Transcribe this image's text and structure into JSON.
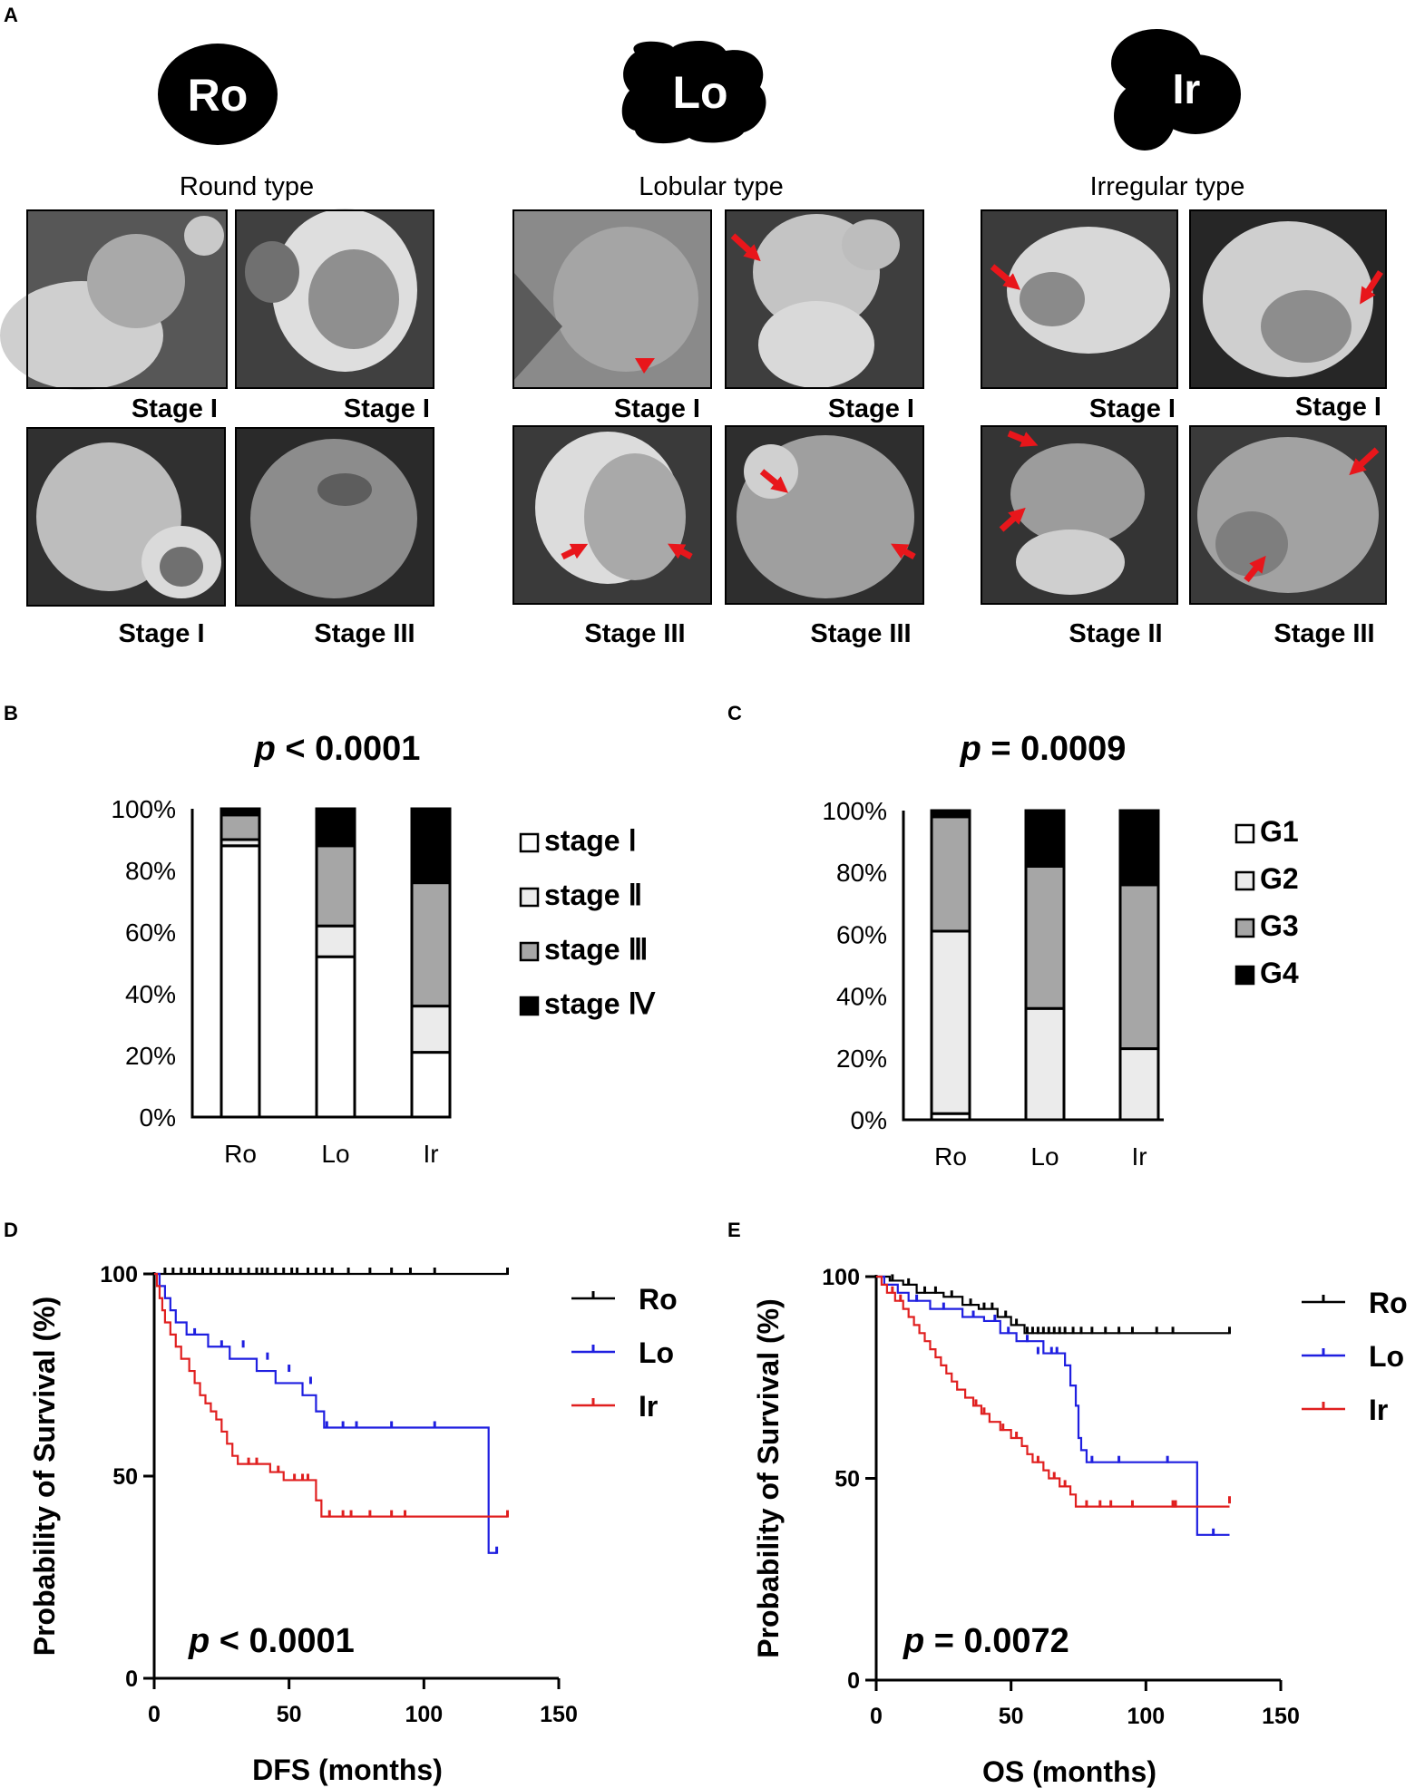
{
  "panel_labels": [
    "A",
    "B",
    "C",
    "D",
    "E"
  ],
  "panel_a": {
    "shapes": [
      {
        "abbr": "Ro",
        "caption": "Round type",
        "image_labels": [
          "Stage I",
          "Stage I",
          "Stage I",
          "Stage III"
        ]
      },
      {
        "abbr": "Lo",
        "caption": "Lobular type",
        "image_labels": [
          "Stage I",
          "Stage I",
          "Stage III",
          "Stage III"
        ]
      },
      {
        "abbr": "Ir",
        "caption": "Irregular type",
        "image_labels": [
          "Stage I",
          "Stage I",
          "Stage II",
          "Stage III"
        ]
      }
    ]
  },
  "colors": {
    "ro": "#000000",
    "lo": "#1f1fe0",
    "ir": "#e01f1f",
    "arrow": "#e8161b"
  },
  "chart_data": [
    {
      "panel": "B",
      "type": "bar",
      "stacked": true,
      "title": "p < 0.0001",
      "title_italic": "p",
      "title_rest": " < 0.0001",
      "categories": [
        "Ro",
        "Lo",
        "Ir"
      ],
      "yticks": [
        "0%",
        "20%",
        "40%",
        "60%",
        "80%",
        "100%"
      ],
      "ylim": [
        0,
        100
      ],
      "series": [
        {
          "name": "stage Ⅰ",
          "color": "#ffffff",
          "values": [
            88,
            52,
            21
          ]
        },
        {
          "name": "stage Ⅱ",
          "color": "#ebebeb",
          "values": [
            2,
            10,
            15
          ]
        },
        {
          "name": "stage Ⅲ",
          "color": "#a6a6a6",
          "values": [
            8,
            26,
            40
          ]
        },
        {
          "name": "stage Ⅳ",
          "color": "#000000",
          "values": [
            2,
            12,
            24
          ]
        }
      ],
      "legend": [
        "stage Ⅰ",
        "stage Ⅱ",
        "stage Ⅲ",
        "stage Ⅳ"
      ]
    },
    {
      "panel": "C",
      "type": "bar",
      "stacked": true,
      "title": "p = 0.0009",
      "title_italic": "p",
      "title_rest": " = 0.0009",
      "categories": [
        "Ro",
        "Lo",
        "Ir"
      ],
      "yticks": [
        "0%",
        "20%",
        "40%",
        "60%",
        "80%",
        "100%"
      ],
      "ylim": [
        0,
        100
      ],
      "series": [
        {
          "name": "G1",
          "color": "#ffffff",
          "values": [
            2,
            0,
            0
          ]
        },
        {
          "name": "G2",
          "color": "#ebebeb",
          "values": [
            59,
            36,
            23
          ]
        },
        {
          "name": "G3",
          "color": "#a6a6a6",
          "values": [
            37,
            46,
            53
          ]
        },
        {
          "name": "G4",
          "color": "#000000",
          "values": [
            2,
            18,
            24
          ]
        }
      ],
      "legend": [
        "G1",
        "G2",
        "G3",
        "G4"
      ]
    },
    {
      "panel": "D",
      "type": "line",
      "step": true,
      "xlabel": "DFS (months)",
      "ylabel": "Probability of Survival (%)",
      "xlim": [
        0,
        150
      ],
      "ylim": [
        0,
        100
      ],
      "xticks": [
        "0",
        "50",
        "100",
        "150"
      ],
      "yticks": [
        "0",
        "50",
        "100"
      ],
      "pvalue_italic": "p",
      "pvalue_rest": " < 0.0001",
      "series": [
        {
          "name": "Ro",
          "color": "#000000",
          "points": [
            [
              0,
              100
            ],
            [
              131,
              100
            ]
          ],
          "censors": [
            [
              4,
              100
            ],
            [
              7,
              100
            ],
            [
              10,
              100
            ],
            [
              13,
              100
            ],
            [
              15,
              100
            ],
            [
              18,
              100
            ],
            [
              21,
              100
            ],
            [
              24,
              100
            ],
            [
              27,
              100
            ],
            [
              29,
              100
            ],
            [
              32,
              100
            ],
            [
              35,
              100
            ],
            [
              38,
              100
            ],
            [
              40,
              100
            ],
            [
              42,
              100
            ],
            [
              45,
              100
            ],
            [
              48,
              100
            ],
            [
              51,
              100
            ],
            [
              53,
              100
            ],
            [
              57,
              100
            ],
            [
              60,
              100
            ],
            [
              63,
              100
            ],
            [
              66,
              100
            ],
            [
              72,
              100
            ],
            [
              80,
              100
            ],
            [
              88,
              100
            ],
            [
              95,
              100
            ],
            [
              104,
              100
            ],
            [
              131,
              100
            ]
          ]
        },
        {
          "name": "Lo",
          "color": "#1f1fe0",
          "points": [
            [
              0,
              100
            ],
            [
              2,
              97
            ],
            [
              4,
              94
            ],
            [
              6,
              91
            ],
            [
              8,
              88
            ],
            [
              12,
              85
            ],
            [
              20,
              82
            ],
            [
              28,
              79
            ],
            [
              38,
              76
            ],
            [
              45,
              73
            ],
            [
              55,
              70
            ],
            [
              60,
              66
            ],
            [
              63,
              62
            ],
            [
              124,
              62
            ],
            [
              124,
              31
            ],
            [
              127,
              31
            ]
          ],
          "censors": [
            [
              15,
              85
            ],
            [
              25,
              82
            ],
            [
              33,
              82
            ],
            [
              42,
              79
            ],
            [
              50,
              76
            ],
            [
              58,
              73
            ],
            [
              64,
              62
            ],
            [
              70,
              62
            ],
            [
              75,
              62
            ],
            [
              88,
              62
            ],
            [
              104,
              62
            ],
            [
              127,
              31
            ]
          ]
        },
        {
          "name": "Ir",
          "color": "#e01f1f",
          "points": [
            [
              0,
              100
            ],
            [
              1,
              97
            ],
            [
              2,
              94
            ],
            [
              3,
              91
            ],
            [
              4,
              88
            ],
            [
              6,
              85
            ],
            [
              8,
              82
            ],
            [
              10,
              79
            ],
            [
              13,
              76
            ],
            [
              15,
              73
            ],
            [
              17,
              70
            ],
            [
              19,
              68
            ],
            [
              21,
              66
            ],
            [
              23,
              64
            ],
            [
              25,
              61
            ],
            [
              27,
              58
            ],
            [
              29,
              55
            ],
            [
              31,
              53
            ],
            [
              43,
              51
            ],
            [
              48,
              49
            ],
            [
              58,
              49
            ],
            [
              60,
              44
            ],
            [
              62,
              40
            ],
            [
              131,
              40
            ]
          ],
          "censors": [
            [
              35,
              53
            ],
            [
              38,
              53
            ],
            [
              46,
              51
            ],
            [
              52,
              49
            ],
            [
              55,
              49
            ],
            [
              57,
              49
            ],
            [
              65,
              40
            ],
            [
              70,
              40
            ],
            [
              73,
              40
            ],
            [
              80,
              40
            ],
            [
              88,
              40
            ],
            [
              93,
              40
            ],
            [
              131,
              40
            ]
          ]
        }
      ],
      "legend": [
        "Ro",
        "Lo",
        "Ir"
      ]
    },
    {
      "panel": "E",
      "type": "line",
      "step": true,
      "xlabel": "OS (months)",
      "ylabel": "Probability of Survival (%)",
      "xlim": [
        0,
        150
      ],
      "ylim": [
        0,
        100
      ],
      "xticks": [
        "0",
        "50",
        "100",
        "150"
      ],
      "yticks": [
        "0",
        "50",
        "100"
      ],
      "pvalue_italic": "p",
      "pvalue_rest": " = 0.0072",
      "series": [
        {
          "name": "Ro",
          "color": "#000000",
          "points": [
            [
              0,
              100
            ],
            [
              5,
              99
            ],
            [
              10,
              98
            ],
            [
              15,
              96
            ],
            [
              25,
              95
            ],
            [
              32,
              93
            ],
            [
              38,
              92
            ],
            [
              45,
              90
            ],
            [
              50,
              88
            ],
            [
              55,
              86
            ],
            [
              131,
              86
            ]
          ],
          "censors": [
            [
              6,
              99
            ],
            [
              12,
              98
            ],
            [
              18,
              96
            ],
            [
              22,
              96
            ],
            [
              28,
              95
            ],
            [
              35,
              93
            ],
            [
              40,
              92
            ],
            [
              43,
              92
            ],
            [
              48,
              90
            ],
            [
              52,
              88
            ],
            [
              56,
              86
            ],
            [
              58,
              86
            ],
            [
              60,
              86
            ],
            [
              62,
              86
            ],
            [
              64,
              86
            ],
            [
              66,
              86
            ],
            [
              68,
              86
            ],
            [
              70,
              86
            ],
            [
              73,
              86
            ],
            [
              76,
              86
            ],
            [
              80,
              86
            ],
            [
              85,
              86
            ],
            [
              90,
              86
            ],
            [
              95,
              86
            ],
            [
              104,
              86
            ],
            [
              110,
              86
            ],
            [
              131,
              86
            ]
          ]
        },
        {
          "name": "Lo",
          "color": "#1f1fe0",
          "points": [
            [
              0,
              100
            ],
            [
              3,
              98
            ],
            [
              8,
              96
            ],
            [
              12,
              94
            ],
            [
              20,
              92
            ],
            [
              32,
              90
            ],
            [
              40,
              89
            ],
            [
              46,
              86
            ],
            [
              52,
              84
            ],
            [
              62,
              81
            ],
            [
              70,
              78
            ],
            [
              72,
              73
            ],
            [
              74,
              68
            ],
            [
              75,
              60
            ],
            [
              76,
              57
            ],
            [
              78,
              54
            ],
            [
              118,
              54
            ],
            [
              119,
              36
            ],
            [
              131,
              36
            ]
          ],
          "censors": [
            [
              15,
              94
            ],
            [
              25,
              92
            ],
            [
              36,
              90
            ],
            [
              44,
              89
            ],
            [
              49,
              86
            ],
            [
              56,
              84
            ],
            [
              60,
              81
            ],
            [
              65,
              81
            ],
            [
              67,
              81
            ],
            [
              80,
              54
            ],
            [
              90,
              54
            ],
            [
              108,
              54
            ],
            [
              125,
              36
            ]
          ]
        },
        {
          "name": "Ir",
          "color": "#e01f1f",
          "points": [
            [
              0,
              100
            ],
            [
              2,
              98
            ],
            [
              4,
              96
            ],
            [
              7,
              94
            ],
            [
              10,
              92
            ],
            [
              12,
              90
            ],
            [
              14,
              88
            ],
            [
              16,
              86
            ],
            [
              18,
              84
            ],
            [
              20,
              82
            ],
            [
              22,
              80
            ],
            [
              24,
              78
            ],
            [
              26,
              76
            ],
            [
              28,
              74
            ],
            [
              30,
              72
            ],
            [
              33,
              70
            ],
            [
              36,
              68
            ],
            [
              39,
              66
            ],
            [
              42,
              64
            ],
            [
              46,
              62
            ],
            [
              50,
              60
            ],
            [
              54,
              58
            ],
            [
              56,
              56
            ],
            [
              58,
              54
            ],
            [
              62,
              52
            ],
            [
              64,
              50
            ],
            [
              68,
              48
            ],
            [
              72,
              46
            ],
            [
              74,
              43
            ],
            [
              131,
              43
            ]
          ],
          "censors": [
            [
              6,
              96
            ],
            [
              9,
              94
            ],
            [
              37,
              68
            ],
            [
              40,
              66
            ],
            [
              47,
              62
            ],
            [
              52,
              60
            ],
            [
              60,
              54
            ],
            [
              66,
              50
            ],
            [
              70,
              48
            ],
            [
              78,
              43
            ],
            [
              83,
              43
            ],
            [
              87,
              43
            ],
            [
              95,
              43
            ],
            [
              110,
              43
            ],
            [
              111,
              43
            ],
            [
              131,
              44
            ]
          ]
        }
      ],
      "legend": [
        "Ro",
        "Lo",
        "Ir"
      ]
    }
  ]
}
